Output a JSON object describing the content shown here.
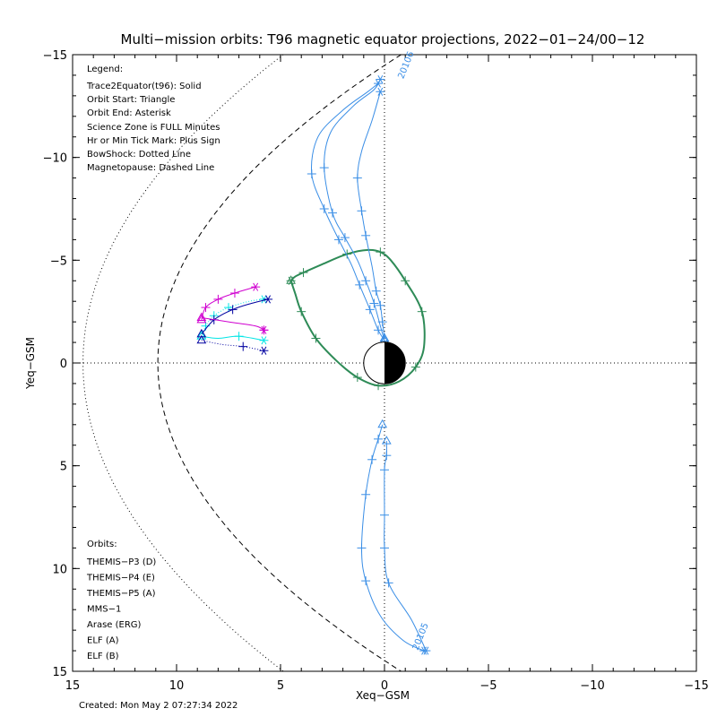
{
  "chart_data": {
    "type": "line",
    "title": "Multi−mission orbits: T96 magnetic equator projections, 2022−01−24/00−12",
    "xlabel": "Xeq−GSM",
    "ylabel": "Yeq−GSM",
    "xlim": [
      15,
      -15
    ],
    "ylim": [
      15,
      -15
    ],
    "x_ticks": [
      15,
      10,
      5,
      0,
      -5,
      -10,
      -15
    ],
    "x_tick_labels": [
      "15",
      "10",
      "5",
      "0",
      "−5",
      "−10",
      "−15"
    ],
    "y_ticks": [
      -15,
      -10,
      -5,
      0,
      5,
      10,
      15
    ],
    "y_tick_labels": [
      "−15",
      "−10",
      "−5",
      "0",
      "5",
      "10",
      "15"
    ],
    "legend_title": "Legend:",
    "legend_lines": [
      "Trace2Equator(t96): Solid",
      "Orbit Start: Triangle",
      "Orbit End: Asterisk",
      "Science Zone is FULL Minutes",
      "Hr or Min Tick Mark: Plus Sign",
      "BowShock: Dotted Line",
      "Magnetopause: Dashed Line"
    ],
    "orbits_title": "Orbits:",
    "orbits_legend": [
      {
        "name": "THEMIS−P3 (D)",
        "color": "#00e5e5"
      },
      {
        "name": "THEMIS−P4 (E)",
        "color": "#0000a0"
      },
      {
        "name": "THEMIS−P5 (A)",
        "color": "#d000d0"
      },
      {
        "name": "MMS−1",
        "color": "#000000"
      },
      {
        "name": "Arase (ERG)",
        "color": "#2e8b57"
      },
      {
        "name": "ELF (A)",
        "color": "#3a8ee6"
      },
      {
        "name": "ELF (B)",
        "color": "#e00000"
      }
    ],
    "footer": "Created: Mon May  2 07:27:34 2022",
    "series": [
      {
        "name": "THEMIS−P3 (D)",
        "color": "#00e5e5",
        "style": "dotted",
        "x": [
          8.8,
          8.6,
          8.2,
          7.5,
          6.5,
          5.8
        ],
        "y": [
          -1.3,
          -1.8,
          -2.3,
          -2.7,
          -3.0,
          -3.1
        ],
        "ticks_idx": [
          1,
          2,
          3
        ]
      },
      {
        "name": "THEMIS−P3 (D) b",
        "color": "#00e5e5",
        "style": "solid",
        "x": [
          8.8,
          8.0,
          7.0,
          5.8
        ],
        "y": [
          -1.3,
          -1.2,
          -1.3,
          -1.1
        ],
        "ticks_idx": [
          2
        ]
      },
      {
        "name": "THEMIS−P4 (E)",
        "color": "#0000a0",
        "style": "solid",
        "x": [
          8.8,
          8.2,
          7.3,
          6.4,
          5.6
        ],
        "y": [
          -1.4,
          -2.1,
          -2.6,
          -2.9,
          -3.1
        ],
        "ticks_idx": [
          1,
          2
        ]
      },
      {
        "name": "THEMIS−P4 (E) b",
        "color": "#0000a0",
        "style": "dotted",
        "x": [
          8.8,
          7.8,
          6.8,
          5.8
        ],
        "y": [
          -1.1,
          -0.9,
          -0.8,
          -0.6
        ],
        "ticks_idx": [
          2
        ]
      },
      {
        "name": "THEMIS−P5 (A)",
        "color": "#d000d0",
        "style": "solid",
        "x": [
          8.8,
          8.6,
          8.0,
          7.2,
          6.2
        ],
        "y": [
          -2.1,
          -2.7,
          -3.1,
          -3.4,
          -3.7
        ],
        "ticks_idx": [
          1,
          2,
          3
        ]
      },
      {
        "name": "THEMIS−P5 (A) b",
        "color": "#d000d0",
        "style": "solid",
        "x": [
          8.8,
          7.5,
          6.2,
          5.8
        ],
        "y": [
          -2.2,
          -2.0,
          -1.8,
          -1.6
        ],
        "ticks_idx": [
          3
        ]
      },
      {
        "name": "Arase (ERG)",
        "color": "#2e8b57",
        "style": "solid",
        "x": [
          4.5,
          4.3,
          4.0,
          3.3,
          2.3,
          1.3,
          0.3,
          -0.7,
          -1.5,
          -1.9,
          -1.8,
          -1.0,
          -0.3,
          0.2,
          0.8,
          1.8,
          3.0,
          3.9,
          4.3,
          4.5
        ],
        "y": [
          -4.0,
          -3.4,
          -2.5,
          -1.2,
          -0.1,
          0.7,
          1.1,
          0.9,
          0.2,
          -0.8,
          -2.5,
          -4.0,
          -5.0,
          -5.4,
          -5.5,
          -5.3,
          -4.8,
          -4.4,
          -4.2,
          -4.0
        ],
        "ticks_idx": [
          2,
          3,
          5,
          6,
          8,
          10,
          11,
          13,
          15,
          17
        ]
      },
      {
        "name": "ELF (A) 1",
        "color": "#3a8ee6",
        "style": "solid",
        "x": [
          0.0,
          0.3,
          0.7,
          1.2,
          1.6,
          2.2,
          2.9,
          3.5,
          3.2,
          2.0,
          0.8,
          0.3
        ],
        "y": [
          -1.1,
          -1.6,
          -2.6,
          -3.8,
          -4.8,
          -6.0,
          -7.5,
          -9.2,
          -11.0,
          -12.3,
          -13.2,
          -13.6
        ],
        "ticks_idx": [
          1,
          2,
          3,
          5,
          6,
          7
        ]
      },
      {
        "name": "ELF (A) 2",
        "color": "#3a8ee6",
        "style": "solid",
        "x": [
          0.0,
          0.2,
          0.5,
          0.9,
          1.3,
          1.9,
          2.5,
          2.9,
          2.6,
          1.5,
          0.5,
          0.2
        ],
        "y": [
          -1.1,
          -1.8,
          -2.9,
          -4.0,
          -5.0,
          -6.1,
          -7.3,
          -9.5,
          -11.2,
          -12.5,
          -13.3,
          -13.8
        ],
        "ticks_idx": [
          2,
          3,
          5,
          6,
          7
        ]
      },
      {
        "name": "ELF (A) 3",
        "color": "#3a8ee6",
        "style": "solid",
        "x": [
          0.0,
          0.1,
          0.2,
          0.4,
          0.6,
          0.9,
          1.1,
          1.3,
          1.1,
          0.6,
          0.2
        ],
        "y": [
          -1.2,
          -2.0,
          -2.8,
          -3.5,
          -4.7,
          -6.2,
          -7.4,
          -9.0,
          -10.3,
          -11.8,
          -13.2
        ],
        "ticks_idx": [
          1,
          2,
          3,
          5,
          6,
          7
        ]
      },
      {
        "name": "ELF (A) south 1",
        "color": "#3a8ee6",
        "style": "solid",
        "x": [
          0.1,
          0.3,
          0.6,
          0.9,
          1.1,
          0.9,
          0.2,
          -0.9,
          -1.9
        ],
        "y": [
          3.0,
          3.7,
          4.7,
          6.4,
          9.0,
          10.6,
          12.3,
          13.5,
          14.0
        ],
        "ticks_idx": [
          1,
          2,
          3,
          4,
          5
        ]
      },
      {
        "name": "ELF (A) south 2",
        "color": "#3a8ee6",
        "style": "solid",
        "x": [
          -0.1,
          -0.1,
          0.0,
          0.0,
          0.0,
          -0.2,
          -1.3,
          -2.0
        ],
        "y": [
          3.8,
          4.5,
          5.2,
          7.4,
          9.0,
          10.7,
          12.5,
          14.0
        ],
        "ticks_idx": [
          1,
          2,
          3,
          4,
          5
        ]
      }
    ],
    "orbit_labels": [
      {
        "text": "20106",
        "color": "#3a8ee6"
      },
      {
        "text": "20105",
        "color": "#3a8ee6"
      }
    ]
  }
}
